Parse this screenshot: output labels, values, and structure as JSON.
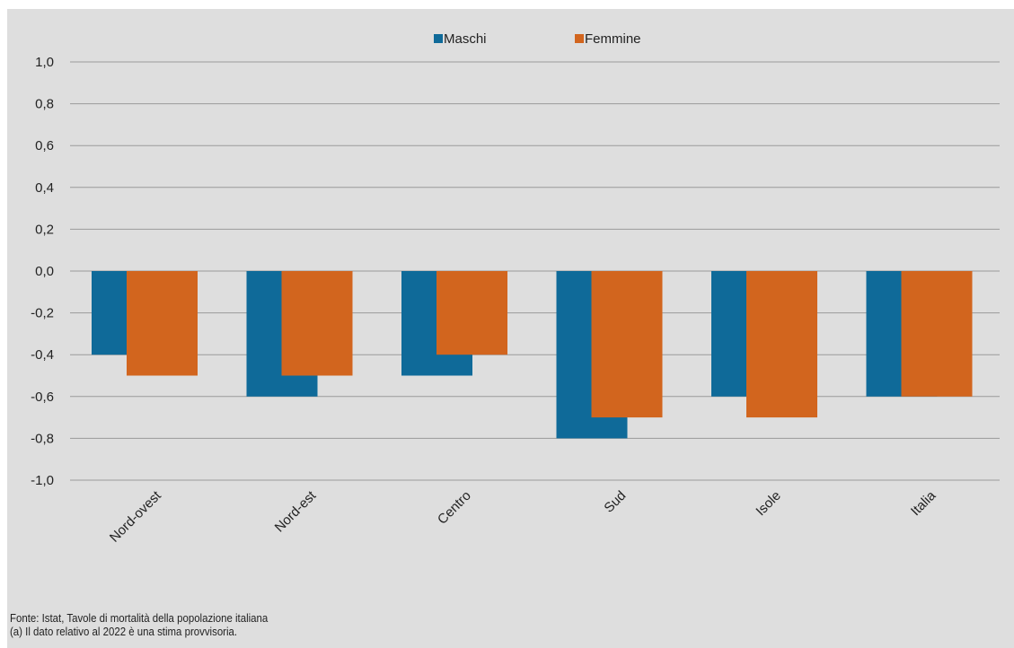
{
  "chart_data": {
    "type": "bar",
    "categories": [
      "Nord-ovest",
      "Nord-est",
      "Centro",
      "Sud",
      "Isole",
      "Italia"
    ],
    "series": [
      {
        "name": "Maschi",
        "values": [
          -0.4,
          -0.6,
          -0.5,
          -0.8,
          -0.6,
          -0.6
        ]
      },
      {
        "name": "Femmine",
        "values": [
          -0.5,
          -0.5,
          -0.4,
          -0.7,
          -0.7,
          -0.6
        ]
      }
    ],
    "ylim": [
      -1.0,
      1.0
    ],
    "yticks": [
      "1,0",
      "0,8",
      "0,6",
      "0,4",
      "0,2",
      "0,0",
      "-0,2",
      "-0,4",
      "-0,6",
      "-0,8",
      "-1,0"
    ],
    "grid": true,
    "legend_position": "top-center",
    "colors": {
      "Maschi": "#0f6a99",
      "Femmine": "#d2651e",
      "grid": "#9a9a9a",
      "background": "#dedede"
    }
  },
  "notes": {
    "source": "Fonte: Istat, Tavole di mortalità della popolazione italiana",
    "footnote": "(a) Il dato relativo al 2022 è una stima provvisoria."
  }
}
